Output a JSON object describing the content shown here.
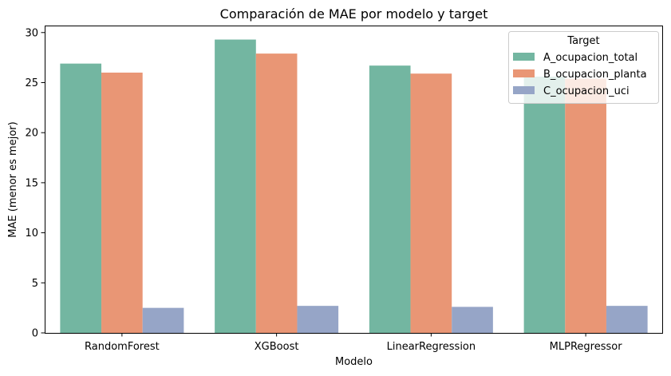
{
  "chart_data": {
    "type": "bar",
    "title": "Comparación de MAE por modelo y target",
    "xlabel": "Modelo",
    "ylabel": "MAE (menor es mejor)",
    "categories": [
      "RandomForest",
      "XGBoost",
      "LinearRegression",
      "MLPRegressor"
    ],
    "ylim": [
      0,
      30.7
    ],
    "yticks": [
      0,
      5,
      10,
      15,
      20,
      25,
      30
    ],
    "grid": false,
    "legend": {
      "title": "Target",
      "placement": "top-right"
    },
    "series": [
      {
        "name": "A_ocupacion_total",
        "color": "#73b6a1",
        "values": [
          26.9,
          29.3,
          26.7,
          25.6
        ]
      },
      {
        "name": "B_ocupacion_planta",
        "color": "#e99675",
        "values": [
          26.0,
          27.9,
          25.9,
          25.4
        ]
      },
      {
        "name": "C_ocupacion_uci",
        "color": "#96a5c7",
        "values": [
          2.5,
          2.7,
          2.6,
          2.7
        ]
      }
    ]
  }
}
